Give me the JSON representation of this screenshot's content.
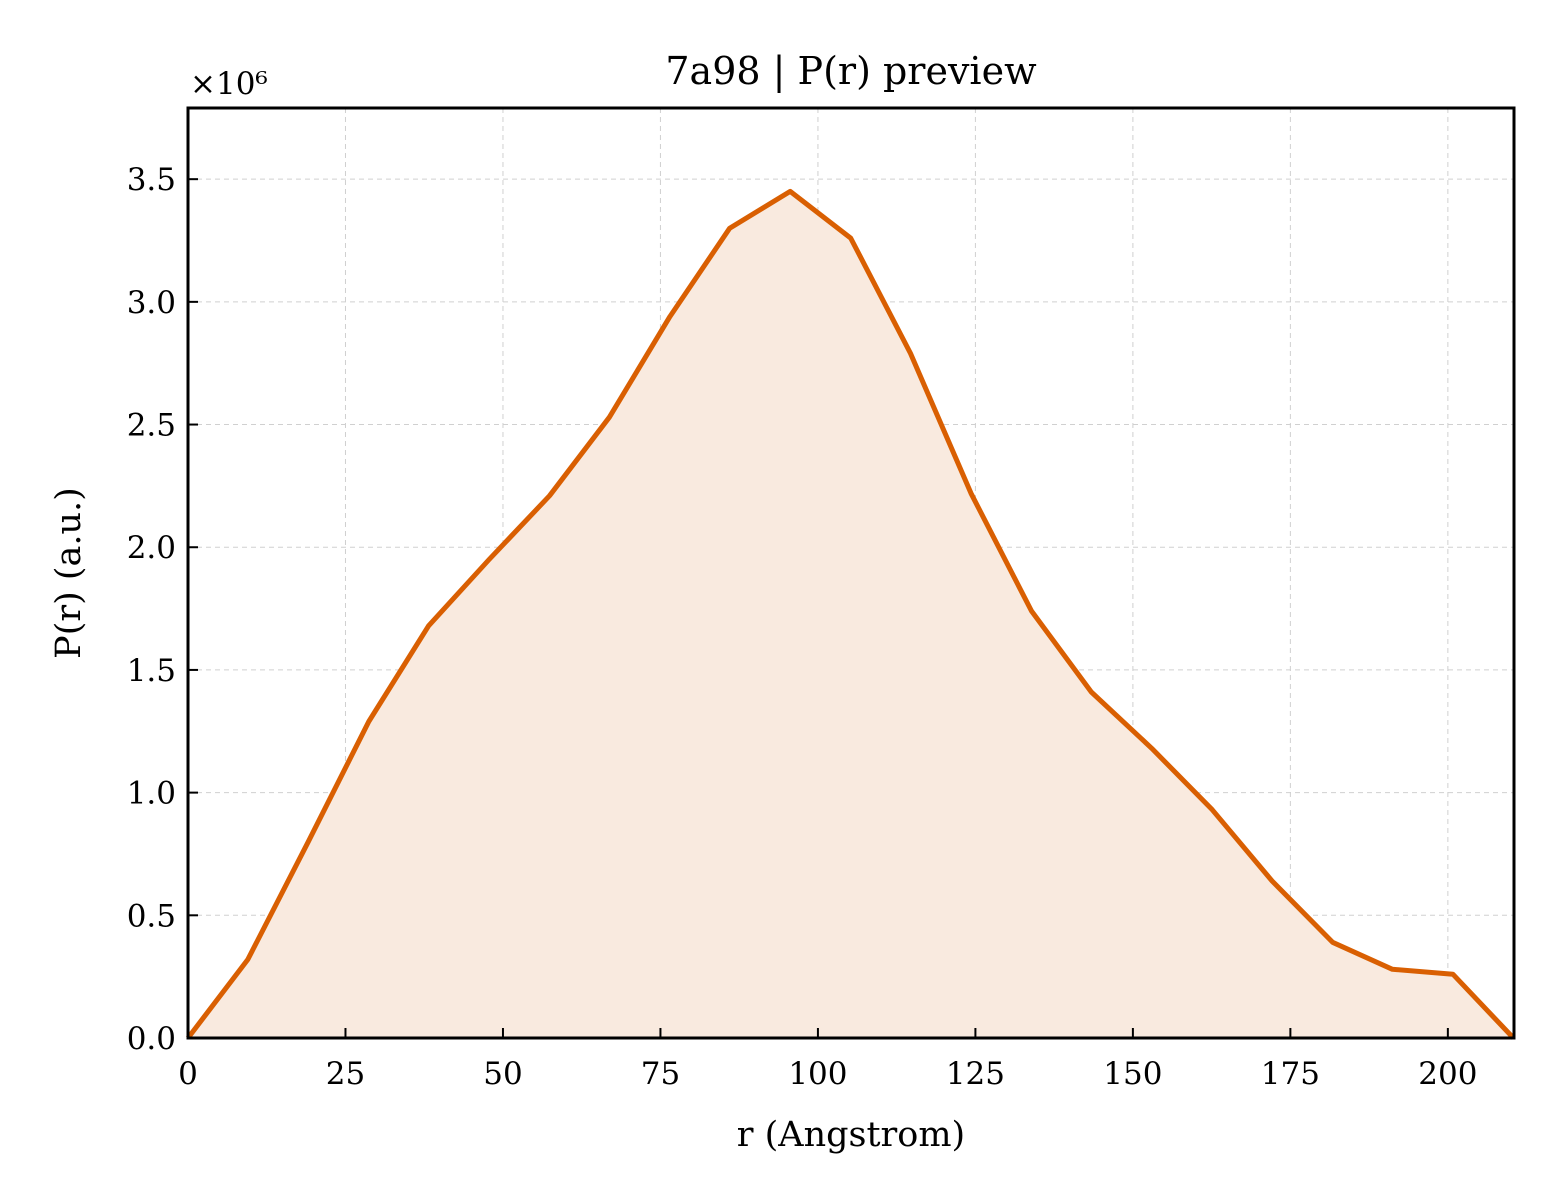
{
  "chart_data": {
    "type": "area",
    "title": "7a98 | P(r) preview",
    "xlabel": "r (Angstrom)",
    "ylabel": "P(r) (a.u.)",
    "y_scale_label": "×10⁶",
    "xlim": [
      0,
      210.5
    ],
    "ylim": [
      0,
      3.79
    ],
    "xticks": [
      0,
      25,
      50,
      75,
      100,
      125,
      150,
      175,
      200
    ],
    "yticks": [
      0.0,
      0.5,
      1.0,
      1.5,
      2.0,
      2.5,
      3.0,
      3.5
    ],
    "ytick_labels": [
      "0.0",
      "0.5",
      "1.0",
      "1.5",
      "2.0",
      "2.5",
      "3.0",
      "3.5"
    ],
    "grid": true,
    "colors": {
      "line": "#d95f02",
      "fill": "#f9eadf"
    },
    "series": [
      {
        "x": [
          0,
          9.5,
          19.1,
          28.7,
          38.2,
          47.8,
          57.4,
          66.9,
          76.5,
          86.0,
          95.6,
          105.2,
          114.7,
          124.3,
          133.9,
          143.4,
          153.0,
          162.6,
          172.1,
          181.7,
          191.2,
          200.8,
          210.4
        ],
        "y": [
          0.0,
          0.32,
          0.8,
          1.29,
          1.68,
          1.95,
          2.21,
          2.53,
          2.94,
          3.3,
          3.45,
          3.26,
          2.79,
          2.22,
          1.74,
          1.41,
          1.18,
          0.93,
          0.64,
          0.39,
          0.28,
          0.26,
          0.0
        ]
      }
    ]
  }
}
